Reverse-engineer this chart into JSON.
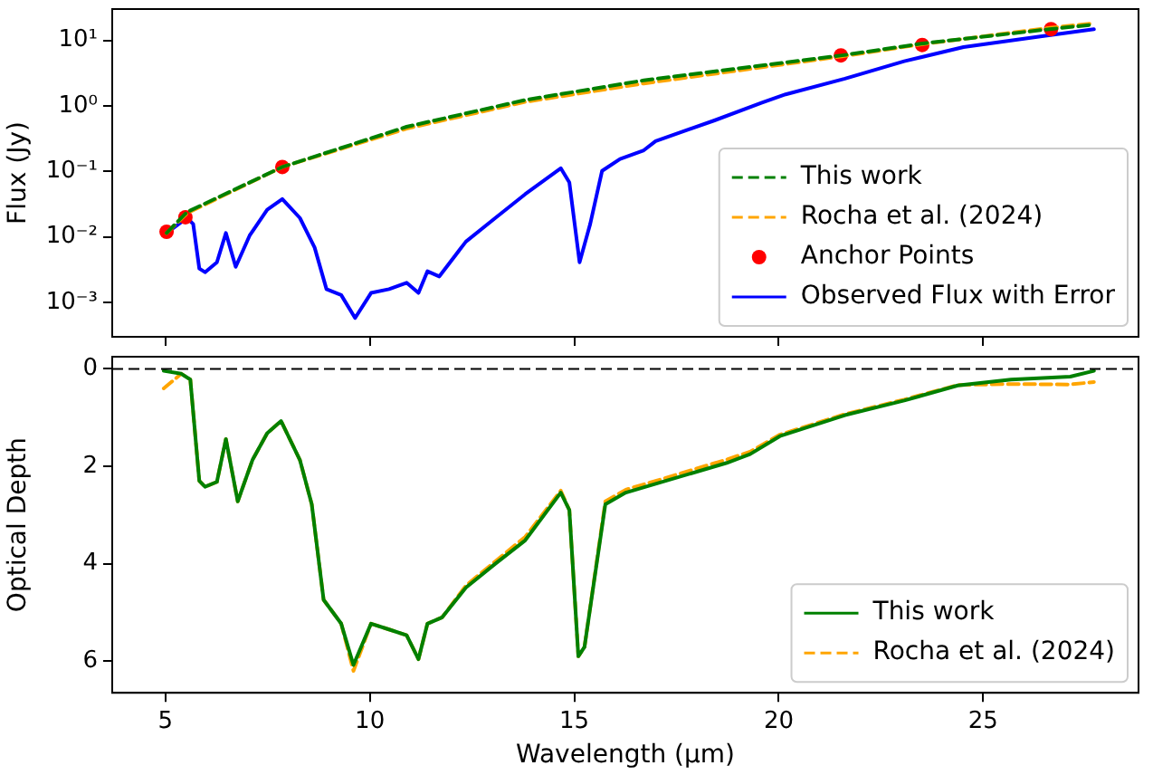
{
  "chart_data": [
    {
      "type": "line",
      "ylabel": "Flux (Jy)",
      "log": "y",
      "xlim": [
        3.7,
        28.8
      ],
      "ylim": [
        0.0003,
        30
      ],
      "xticks": [
        5,
        10,
        15,
        20,
        25
      ],
      "yticks": [
        {
          "value": 0.001,
          "label": "10⁻³"
        },
        {
          "value": 0.01,
          "label": "10⁻²"
        },
        {
          "value": 0.1,
          "label": "10⁻¹"
        },
        {
          "value": 1,
          "label": "10⁰"
        },
        {
          "value": 10,
          "label": "10¹"
        }
      ],
      "tick_labels": "y",
      "grid": false,
      "legend": "bottom right",
      "series": [
        {
          "name": "This work",
          "type": "line",
          "line_style": "dashed",
          "marker": "none",
          "color": "#008000",
          "x": [
            5.03,
            5.53,
            7.86,
            10.9,
            13.8,
            16.7,
            21.55,
            23.49,
            26.62,
            27.71
          ],
          "values": [
            0.0115,
            0.024,
            0.117,
            0.48,
            1.23,
            2.45,
            5.9,
            8.9,
            14.8,
            17.4
          ]
        },
        {
          "name": "Rocha et al. (2024)",
          "type": "line",
          "line_style": "dashed",
          "marker": "none",
          "color": "#ffa500",
          "x": [
            5.03,
            5.53,
            7.86,
            10.9,
            13.8,
            16.7,
            21.55,
            23.49,
            26.62,
            27.71
          ],
          "values": [
            0.0115,
            0.023,
            0.117,
            0.45,
            1.15,
            2.2,
            5.7,
            8.7,
            15.5,
            18.2
          ]
        },
        {
          "name": "Anchor Points",
          "type": "scatter",
          "marker": "circle",
          "color": "#ff0000",
          "x": [
            5.03,
            5.49,
            7.86,
            21.52,
            23.51,
            26.66
          ],
          "values": [
            0.012,
            0.02,
            0.117,
            5.9,
            8.5,
            14.8
          ]
        },
        {
          "name": "Observed Flux with Error",
          "type": "line",
          "line_style": "solid",
          "marker": "none",
          "color": "#0000ff",
          "x": [
            5.03,
            5.53,
            5.68,
            5.83,
            5.97,
            6.26,
            6.48,
            6.72,
            7.06,
            7.49,
            7.86,
            8.29,
            8.65,
            8.94,
            9.3,
            9.64,
            10.03,
            10.47,
            10.9,
            11.19,
            11.41,
            11.7,
            12.35,
            13.07,
            13.8,
            14.67,
            14.88,
            15.13,
            15.39,
            15.68,
            16.12,
            16.7,
            16.99,
            18.43,
            19.59,
            20.17,
            21.62,
            23.07,
            24.52,
            26.4,
            27.71
          ],
          "values": [
            0.0115,
            0.0195,
            0.0158,
            0.0033,
            0.0029,
            0.0041,
            0.0115,
            0.0035,
            0.0105,
            0.026,
            0.038,
            0.0195,
            0.0069,
            0.0016,
            0.0013,
            0.00058,
            0.0014,
            0.0016,
            0.002,
            0.0014,
            0.003,
            0.0025,
            0.0085,
            0.0195,
            0.045,
            0.112,
            0.068,
            0.0041,
            0.0158,
            0.102,
            0.155,
            0.21,
            0.29,
            0.6,
            1.12,
            1.5,
            2.6,
            4.8,
            7.9,
            11.5,
            14.8
          ]
        }
      ]
    },
    {
      "type": "line",
      "xlabel": "Wavelength (µm)",
      "ylabel": "Optical Depth",
      "xlim": [
        3.7,
        28.8
      ],
      "ylim": [
        6.65,
        -0.25
      ],
      "xticks": [
        5,
        10,
        15,
        20,
        25
      ],
      "yticks": [
        0,
        2,
        4,
        6
      ],
      "grid": false,
      "legend": "bottom right",
      "ref_lines": [
        {
          "axis": "y",
          "value": 0,
          "color": "#000000",
          "line_style": "dashed"
        }
      ],
      "x": [
        4.96,
        5.39,
        5.61,
        5.83,
        5.97,
        6.26,
        6.48,
        6.77,
        7.13,
        7.49,
        7.83,
        8.29,
        8.58,
        8.87,
        9.3,
        9.6,
        10.03,
        10.47,
        10.9,
        11.19,
        11.41,
        11.77,
        12.35,
        13.07,
        13.8,
        14.67,
        14.88,
        15.1,
        15.25,
        15.76,
        16.26,
        16.99,
        18.73,
        19.3,
        20.03,
        21.62,
        23.07,
        24.38,
        25.68,
        27.13,
        27.71
      ],
      "series": [
        {
          "name": "This work",
          "line_style": "solid",
          "marker": "none",
          "color": "#008000",
          "values": [
            0.04,
            0.1,
            0.22,
            2.3,
            2.42,
            2.32,
            1.44,
            2.72,
            1.87,
            1.32,
            1.07,
            1.87,
            2.78,
            4.74,
            5.23,
            6.08,
            5.23,
            5.35,
            5.47,
            5.96,
            5.23,
            5.1,
            4.49,
            4.0,
            3.52,
            2.54,
            2.9,
            5.9,
            5.71,
            2.78,
            2.54,
            2.36,
            1.93,
            1.75,
            1.38,
            0.95,
            0.65,
            0.34,
            0.22,
            0.16,
            0.04
          ]
        },
        {
          "name": "Rocha et al. (2024)",
          "line_style": "dashed",
          "marker": "none",
          "color": "#ffa500",
          "values": [
            0.4,
            0.1,
            0.22,
            2.3,
            2.42,
            2.32,
            1.44,
            2.72,
            1.87,
            1.32,
            1.07,
            1.87,
            2.78,
            4.74,
            5.23,
            6.2,
            5.23,
            5.35,
            5.47,
            5.96,
            5.23,
            5.1,
            4.45,
            3.95,
            3.45,
            2.5,
            2.9,
            5.9,
            5.71,
            2.72,
            2.48,
            2.3,
            1.86,
            1.7,
            1.35,
            0.93,
            0.63,
            0.33,
            0.31,
            0.32,
            0.27
          ]
        }
      ]
    }
  ]
}
